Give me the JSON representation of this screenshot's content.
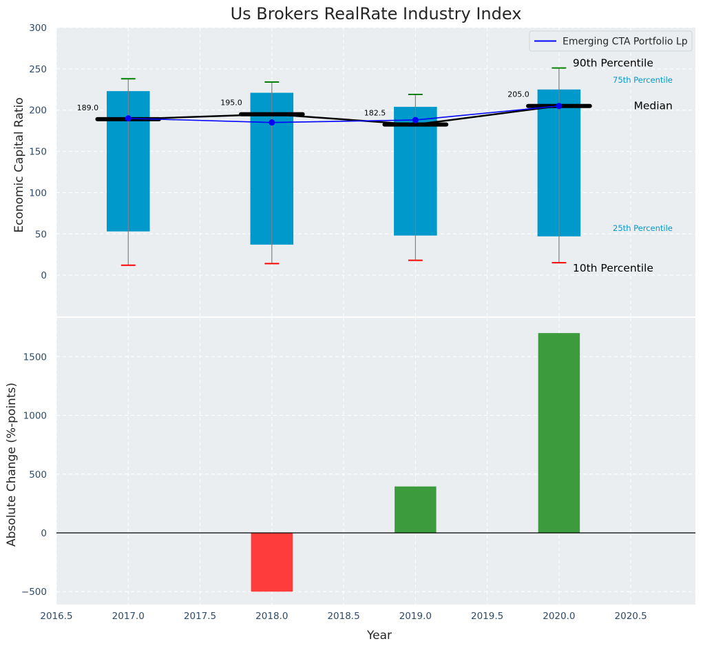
{
  "chart_data": [
    {
      "type": "box",
      "title": "Us Brokers RealRate Industry Index",
      "ylabel": "Economic Capital Ratio",
      "ylim": [
        -50,
        300
      ],
      "yticks": [
        0,
        50,
        100,
        150,
        200,
        250,
        300
      ],
      "xlim": [
        2016.5,
        2020.95
      ],
      "grid": true,
      "legend_position": "top-right",
      "colors": {
        "box": "#0099cc",
        "whisker": "#808080",
        "p90_cap": "#008000",
        "p10_cap": "#ff0000",
        "median": "#000000",
        "series": "#0000ff"
      },
      "boxes": [
        {
          "x": 2017,
          "p10": 12,
          "p25": 53,
          "median": 189.0,
          "p75": 223,
          "p90": 238
        },
        {
          "x": 2018,
          "p10": 14,
          "p25": 37,
          "median": 195.0,
          "p75": 221,
          "p90": 234
        },
        {
          "x": 2019,
          "p10": 18,
          "p25": 48,
          "median": 182.5,
          "p75": 204,
          "p90": 219
        },
        {
          "x": 2020,
          "p10": 15,
          "p25": 47,
          "median": 205.0,
          "p75": 225,
          "p90": 251
        }
      ],
      "median_labels": [
        "189.0",
        "195.0",
        "182.5",
        "205.0"
      ],
      "series": [
        {
          "name": "Emerging CTA Portfolio Lp",
          "x": [
            2017,
            2018,
            2019,
            2020
          ],
          "values": [
            190,
            185,
            188,
            205
          ]
        }
      ],
      "annotations": {
        "p90": "90th Percentile",
        "p75": "75th Percentile",
        "median": "Median",
        "p25": "25th Percentile",
        "p10": "10th Percentile"
      }
    },
    {
      "type": "bar",
      "ylabel": "Absolute Change (%-points)",
      "xlabel": "Year",
      "ylim": [
        -610,
        1830
      ],
      "yticks": [
        -500,
        0,
        500,
        1000,
        1500
      ],
      "ytick_labels": [
        "−500",
        "0",
        "500",
        "1000",
        "1500"
      ],
      "xlim": [
        2016.5,
        2020.95
      ],
      "xticks": [
        2016.5,
        2017.0,
        2017.5,
        2018.0,
        2018.5,
        2019.0,
        2019.5,
        2020.0,
        2020.5
      ],
      "xtick_labels": [
        "2016.5",
        "2017.0",
        "2017.5",
        "2018.0",
        "2018.5",
        "2019.0",
        "2019.5",
        "2020.0",
        "2020.5"
      ],
      "colors": {
        "positive": "#3c9b3c",
        "negative": "#ff3c3c"
      },
      "x": [
        2018,
        2019,
        2020
      ],
      "values": [
        -500,
        395,
        1700
      ]
    }
  ]
}
